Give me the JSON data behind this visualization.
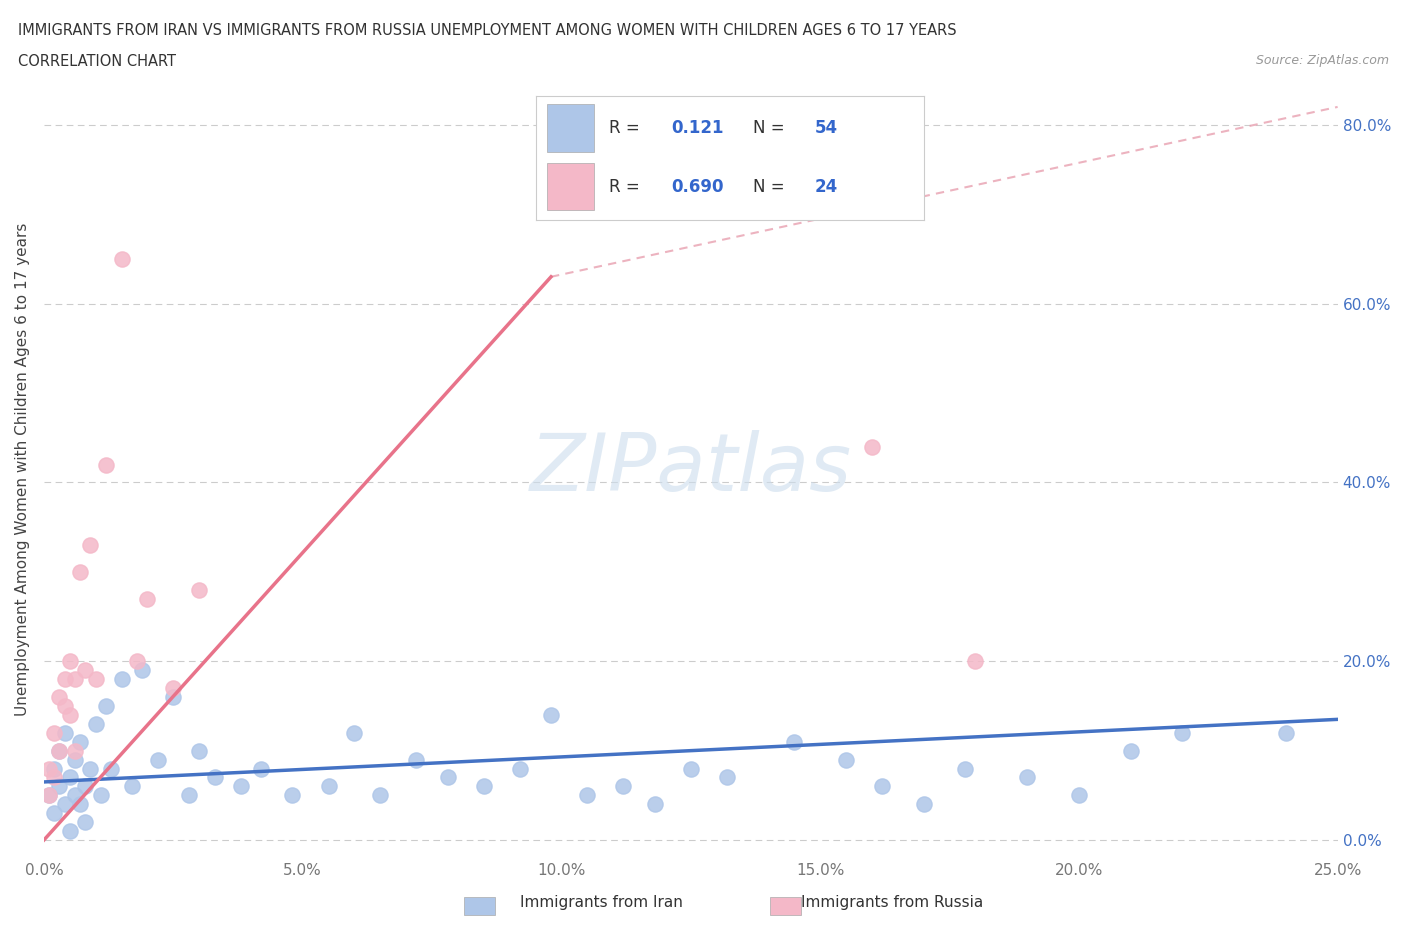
{
  "title_line1": "IMMIGRANTS FROM IRAN VS IMMIGRANTS FROM RUSSIA UNEMPLOYMENT AMONG WOMEN WITH CHILDREN AGES 6 TO 17 YEARS",
  "title_line2": "CORRELATION CHART",
  "source_text": "Source: ZipAtlas.com",
  "ylabel": "Unemployment Among Women with Children Ages 6 to 17 years",
  "watermark": "ZIPatlas",
  "iran_R": 0.121,
  "iran_N": 54,
  "russia_R": 0.69,
  "russia_N": 24,
  "xlim": [
    0.0,
    0.25
  ],
  "ylim": [
    -0.02,
    0.85
  ],
  "xticks": [
    0.0,
    0.05,
    0.1,
    0.15,
    0.2,
    0.25
  ],
  "xticklabels": [
    "0.0%",
    "5.0%",
    "10.0%",
    "15.0%",
    "20.0%",
    "25.0%"
  ],
  "yticks": [
    0.0,
    0.2,
    0.4,
    0.6,
    0.8
  ],
  "yticklabels": [
    "0.0%",
    "20.0%",
    "40.0%",
    "60.0%",
    "80.0%"
  ],
  "iran_color": "#aec6e8",
  "russia_color": "#f4b8c8",
  "iran_line_color": "#4472c4",
  "russia_line_color": "#e8738a",
  "dash_color": "#e8a0b0",
  "iran_x": [
    0.001,
    0.002,
    0.002,
    0.003,
    0.003,
    0.004,
    0.004,
    0.005,
    0.005,
    0.006,
    0.006,
    0.007,
    0.007,
    0.008,
    0.008,
    0.009,
    0.01,
    0.011,
    0.012,
    0.013,
    0.015,
    0.017,
    0.019,
    0.022,
    0.025,
    0.028,
    0.03,
    0.033,
    0.038,
    0.042,
    0.048,
    0.055,
    0.06,
    0.065,
    0.072,
    0.078,
    0.085,
    0.092,
    0.098,
    0.105,
    0.112,
    0.118,
    0.125,
    0.132,
    0.145,
    0.155,
    0.162,
    0.17,
    0.178,
    0.19,
    0.2,
    0.21,
    0.22,
    0.24
  ],
  "iran_y": [
    0.05,
    0.08,
    0.03,
    0.1,
    0.06,
    0.04,
    0.12,
    0.07,
    0.01,
    0.05,
    0.09,
    0.04,
    0.11,
    0.06,
    0.02,
    0.08,
    0.13,
    0.05,
    0.15,
    0.08,
    0.18,
    0.06,
    0.19,
    0.09,
    0.16,
    0.05,
    0.1,
    0.07,
    0.06,
    0.08,
    0.05,
    0.06,
    0.12,
    0.05,
    0.09,
    0.07,
    0.06,
    0.08,
    0.14,
    0.05,
    0.06,
    0.04,
    0.08,
    0.07,
    0.11,
    0.09,
    0.06,
    0.04,
    0.08,
    0.07,
    0.05,
    0.1,
    0.12,
    0.12
  ],
  "russia_x": [
    0.001,
    0.001,
    0.002,
    0.002,
    0.003,
    0.003,
    0.004,
    0.004,
    0.005,
    0.005,
    0.006,
    0.006,
    0.007,
    0.008,
    0.009,
    0.01,
    0.012,
    0.015,
    0.018,
    0.02,
    0.025,
    0.03,
    0.16,
    0.18
  ],
  "russia_y": [
    0.05,
    0.08,
    0.07,
    0.12,
    0.1,
    0.16,
    0.15,
    0.18,
    0.14,
    0.2,
    0.18,
    0.1,
    0.3,
    0.19,
    0.33,
    0.18,
    0.42,
    0.65,
    0.2,
    0.27,
    0.17,
    0.28,
    0.44,
    0.2
  ],
  "iran_line_x": [
    0.0,
    0.25
  ],
  "iran_line_y": [
    0.065,
    0.135
  ],
  "russia_line_x": [
    0.0,
    0.098
  ],
  "russia_line_y": [
    0.0,
    0.63
  ],
  "dash_line_x": [
    0.098,
    0.25
  ],
  "dash_line_y": [
    0.63,
    0.82
  ]
}
